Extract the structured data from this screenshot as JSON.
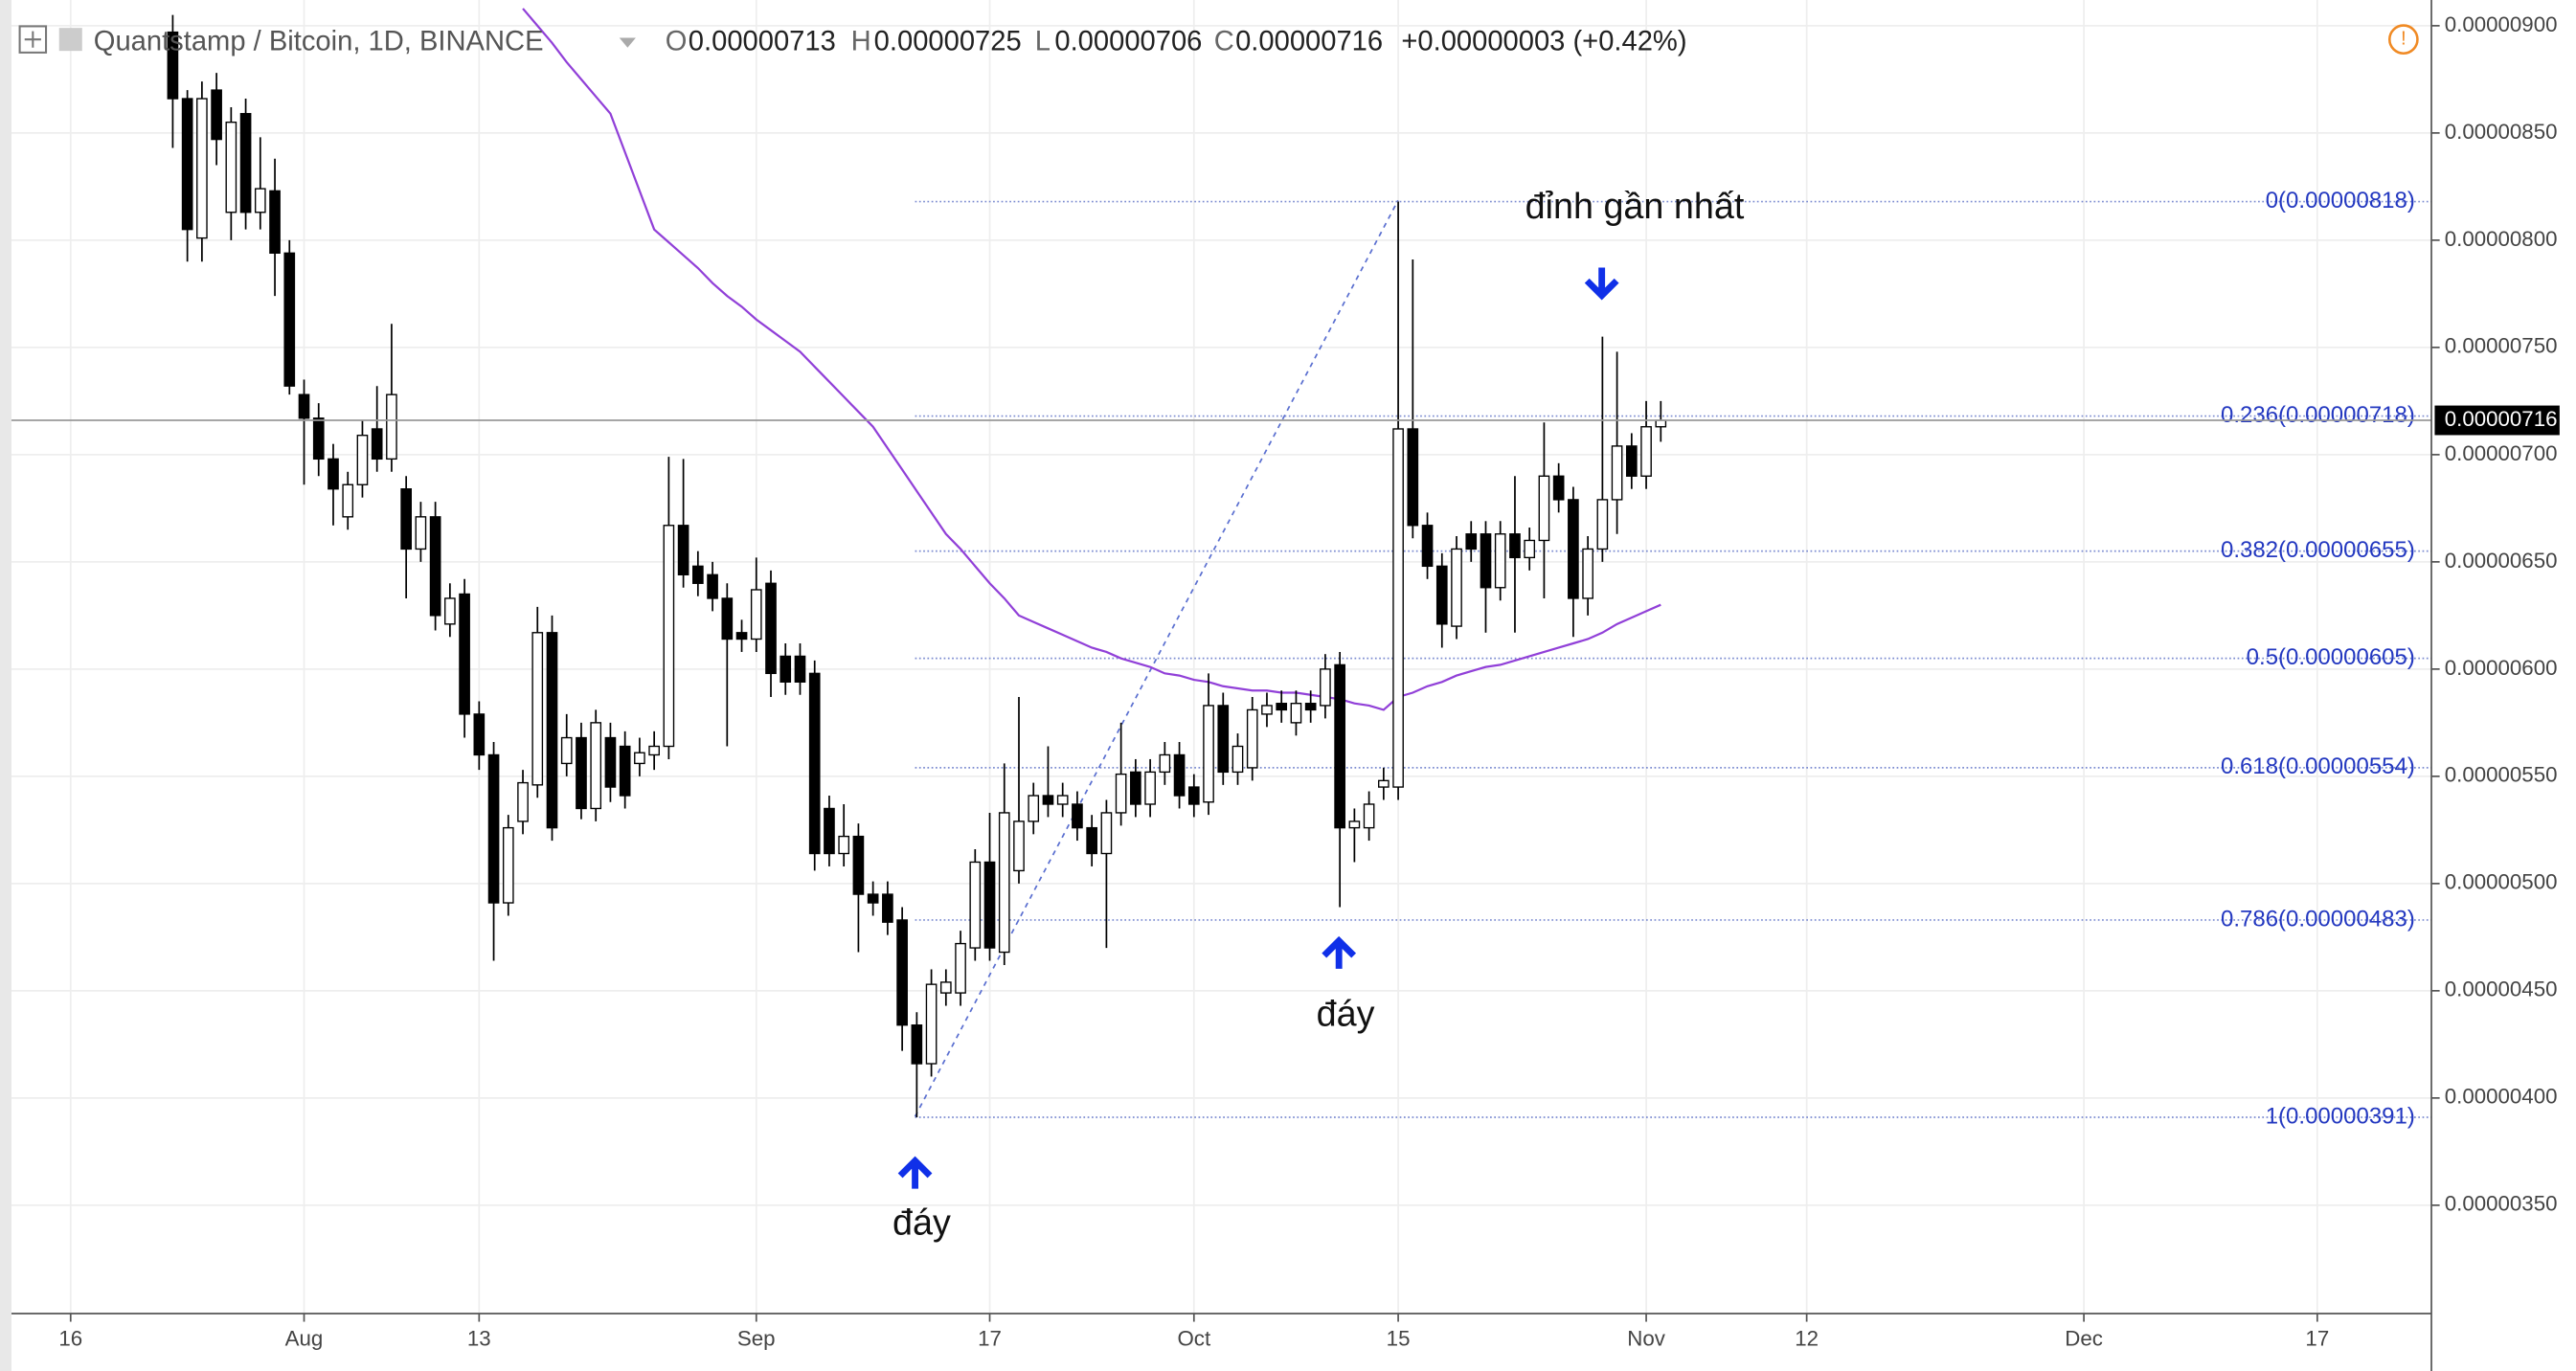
{
  "chart_data": {
    "type": "candlestick",
    "title": "Quantstamp / Bitcoin, 1D, BINANCE",
    "ohlc_legend": [
      {
        "label": "O",
        "value": "0.00000713"
      },
      {
        "label": "H",
        "value": "0.00000725"
      },
      {
        "label": "L",
        "value": "0.00000706"
      },
      {
        "label": "C",
        "value": "0.00000716"
      }
    ],
    "change": "+0.00000003 (+0.42%)",
    "categories": [
      "16",
      null,
      null,
      null,
      null,
      null,
      null,
      null,
      null,
      null,
      null,
      null,
      null,
      null,
      null,
      null,
      "Aug",
      null,
      null,
      null,
      null,
      null,
      null,
      null,
      null,
      null,
      null,
      null,
      "13",
      null,
      null,
      null,
      null,
      null,
      null,
      null,
      null,
      null,
      null,
      null,
      null,
      null,
      null,
      null,
      null,
      null,
      null,
      "Sep",
      null,
      null,
      null,
      null,
      null,
      null,
      null,
      null,
      null,
      null,
      null,
      null,
      null,
      null,
      null,
      "17",
      null,
      null,
      null,
      null,
      null,
      null,
      null,
      null,
      null,
      null,
      null,
      null,
      null,
      "Oct",
      null,
      null,
      null,
      null,
      null,
      null,
      null,
      null,
      null,
      null,
      null,
      null,
      null,
      "15",
      null,
      null,
      null,
      null,
      null,
      null,
      null,
      null,
      null,
      null,
      null,
      null,
      null,
      null,
      null,
      null,
      "Nov",
      null,
      null,
      null,
      null,
      null,
      null,
      null,
      null,
      null,
      null,
      "12",
      null,
      null,
      null,
      null,
      null,
      null,
      null,
      null,
      null,
      null,
      null,
      null,
      null,
      null,
      null,
      null,
      null,
      null,
      "Dec",
      null,
      null,
      null,
      null,
      null,
      null,
      null,
      null,
      null,
      null,
      null,
      null,
      null,
      null,
      null,
      "17",
      null,
      null,
      null,
      null,
      null,
      null,
      null
    ],
    "open": [
      null,
      null,
      null,
      null,
      null,
      null,
      null,
      8.97e-06,
      8.66e-06,
      8.01e-06,
      8.7e-06,
      8.13e-06,
      8.59e-06,
      8.13e-06,
      8.23e-06,
      7.94e-06,
      7.28e-06,
      7.17e-06,
      6.98e-06,
      6.71e-06,
      6.86e-06,
      7.12e-06,
      6.98e-06,
      6.84e-06,
      6.56e-06,
      6.71e-06,
      6.21e-06,
      6.35e-06,
      5.79e-06,
      5.6e-06,
      4.91e-06,
      5.29e-06,
      5.46e-06,
      6.17e-06,
      5.56e-06,
      5.68e-06,
      5.35e-06,
      5.68e-06,
      5.64e-06,
      5.56e-06,
      5.6e-06,
      5.64e-06,
      6.67e-06,
      6.48e-06,
      6.44e-06,
      6.33e-06,
      6.17e-06,
      6.14e-06,
      6.4e-06,
      6.06e-06,
      6.06e-06,
      5.98e-06,
      5.35e-06,
      5.14e-06,
      5.22e-06,
      4.95e-06,
      4.95e-06,
      4.83e-06,
      4.34e-06,
      4.16e-06,
      4.49e-06,
      4.49e-06,
      4.7e-06,
      5.1e-06,
      4.68e-06,
      5.06e-06,
      5.29e-06,
      5.41e-06,
      5.37e-06,
      5.37e-06,
      5.26e-06,
      5.14e-06,
      5.33e-06,
      5.52e-06,
      5.37e-06,
      5.52e-06,
      5.6e-06,
      5.45e-06,
      5.38e-06,
      5.83e-06,
      5.52e-06,
      5.54e-06,
      5.79e-06,
      5.84e-06,
      5.75e-06,
      5.84e-06,
      5.83e-06,
      6.02e-06,
      5.26e-06,
      5.26e-06,
      5.45e-06,
      5.45e-06,
      7.12e-06,
      6.67e-06,
      6.48e-06,
      6.2e-06,
      6.63e-06,
      6.63e-06,
      6.38e-06,
      6.63e-06,
      6.52e-06,
      6.6e-06,
      6.9e-06,
      6.79e-06,
      6.33e-06,
      6.56e-06,
      6.79e-06,
      7.04e-06,
      6.9e-06,
      7.13e-06,
      null,
      null,
      null,
      null,
      null,
      null,
      null,
      null,
      null,
      null,
      null,
      null,
      null,
      null,
      null,
      null,
      null,
      null,
      null,
      null,
      null,
      null,
      null,
      null,
      null,
      null,
      null,
      null,
      null,
      null,
      null,
      null,
      null,
      null,
      null,
      null,
      null,
      null,
      null,
      null,
      null,
      null,
      null,
      null,
      null,
      null,
      null,
      null,
      null,
      null,
      null,
      null
    ],
    "high": [
      null,
      null,
      null,
      null,
      null,
      null,
      null,
      9.05e-06,
      8.7e-06,
      8.74e-06,
      8.78e-06,
      8.62e-06,
      8.66e-06,
      8.48e-06,
      8.38e-06,
      8e-06,
      7.35e-06,
      7.24e-06,
      7.05e-06,
      6.92e-06,
      7.16e-06,
      7.32e-06,
      7.61e-06,
      6.9e-06,
      6.78e-06,
      6.78e-06,
      6.4e-06,
      6.42e-06,
      5.85e-06,
      5.66e-06,
      5.32e-06,
      5.53e-06,
      6.29e-06,
      6.25e-06,
      5.79e-06,
      5.75e-06,
      5.81e-06,
      5.75e-06,
      5.71e-06,
      5.68e-06,
      5.71e-06,
      6.99e-06,
      6.98e-06,
      6.55e-06,
      6.5e-06,
      6.4e-06,
      6.23e-06,
      6.52e-06,
      6.46e-06,
      6.12e-06,
      6.12e-06,
      6.04e-06,
      5.41e-06,
      5.37e-06,
      5.28e-06,
      5.01e-06,
      5.01e-06,
      4.89e-06,
      4.4e-06,
      4.6e-06,
      4.6e-06,
      4.78e-06,
      5.16e-06,
      5.33e-06,
      5.56e-06,
      5.87e-06,
      5.47e-06,
      5.64e-06,
      5.47e-06,
      5.43e-06,
      5.32e-06,
      5.39e-06,
      5.75e-06,
      5.58e-06,
      5.58e-06,
      5.66e-06,
      5.66e-06,
      5.51e-06,
      5.98e-06,
      5.89e-06,
      5.7e-06,
      5.87e-06,
      5.89e-06,
      5.9e-06,
      5.9e-06,
      5.9e-06,
      6.07e-06,
      6.08e-06,
      5.35e-06,
      5.43e-06,
      5.54e-06,
      8.18e-06,
      7.91e-06,
      6.73e-06,
      6.54e-06,
      6.62e-06,
      6.69e-06,
      6.69e-06,
      6.69e-06,
      6.9e-06,
      6.66e-06,
      7.15e-06,
      6.96e-06,
      6.85e-06,
      6.62e-06,
      7.55e-06,
      7.48e-06,
      7.1e-06,
      7.25e-06,
      7.25e-06,
      null,
      null,
      null,
      null,
      null,
      null,
      null,
      null,
      null,
      null,
      null,
      null,
      null,
      null,
      null,
      null,
      null,
      null,
      null,
      null,
      null,
      null,
      null,
      null,
      null,
      null,
      null,
      null,
      null,
      null,
      null,
      null,
      null,
      null,
      null,
      null,
      null,
      null,
      null,
      null,
      null,
      null,
      null,
      null,
      null,
      null,
      null,
      null,
      null,
      null,
      null,
      null
    ],
    "low": [
      null,
      null,
      null,
      null,
      null,
      null,
      null,
      8.43e-06,
      7.9e-06,
      7.9e-06,
      8.35e-06,
      8e-06,
      8.05e-06,
      8.05e-06,
      7.74e-06,
      7.28e-06,
      6.86e-06,
      6.9e-06,
      6.67e-06,
      6.65e-06,
      6.8e-06,
      6.92e-06,
      6.92e-06,
      6.33e-06,
      6.5e-06,
      6.18e-06,
      6.15e-06,
      5.68e-06,
      5.53e-06,
      4.64e-06,
      4.85e-06,
      5.23e-06,
      5.4e-06,
      5.2e-06,
      5.5e-06,
      5.3e-06,
      5.29e-06,
      5.38e-06,
      5.35e-06,
      5.5e-06,
      5.53e-06,
      5.58e-06,
      6.38e-06,
      6.34e-06,
      6.27e-06,
      5.64e-06,
      6.08e-06,
      6.08e-06,
      5.87e-06,
      5.88e-06,
      5.88e-06,
      5.06e-06,
      5.08e-06,
      5.08e-06,
      4.68e-06,
      4.85e-06,
      4.76e-06,
      4.22e-06,
      3.91e-06,
      4.1e-06,
      4.43e-06,
      4.43e-06,
      4.64e-06,
      4.64e-06,
      4.62e-06,
      5e-06,
      5.23e-06,
      5.31e-06,
      5.31e-06,
      5.2e-06,
      5.08e-06,
      4.7e-06,
      5.27e-06,
      5.31e-06,
      5.31e-06,
      5.46e-06,
      5.35e-06,
      5.31e-06,
      5.32e-06,
      5.46e-06,
      5.46e-06,
      5.48e-06,
      5.73e-06,
      5.75e-06,
      5.69e-06,
      5.75e-06,
      5.77e-06,
      4.89e-06,
      5.1e-06,
      5.2e-06,
      5.39e-06,
      5.39e-06,
      6.61e-06,
      6.42e-06,
      6.1e-06,
      6.14e-06,
      6.5e-06,
      6.17e-06,
      6.32e-06,
      6.17e-06,
      6.46e-06,
      6.33e-06,
      6.73e-06,
      6.15e-06,
      6.25e-06,
      6.5e-06,
      6.63e-06,
      6.84e-06,
      6.84e-06,
      7.06e-06,
      null,
      null,
      null,
      null,
      null,
      null,
      null,
      null,
      null,
      null,
      null,
      null,
      null,
      null,
      null,
      null,
      null,
      null,
      null,
      null,
      null,
      null,
      null,
      null,
      null,
      null,
      null,
      null,
      null,
      null,
      null,
      null,
      null,
      null,
      null,
      null,
      null,
      null,
      null,
      null,
      null,
      null,
      null,
      null,
      null,
      null,
      null,
      null,
      null,
      null,
      null,
      null
    ],
    "close": [
      null,
      null,
      null,
      null,
      null,
      null,
      null,
      8.66e-06,
      8.05e-06,
      8.66e-06,
      8.47e-06,
      8.55e-06,
      8.13e-06,
      8.24e-06,
      7.94e-06,
      7.32e-06,
      7.17e-06,
      6.98e-06,
      6.84e-06,
      6.86e-06,
      7.09e-06,
      6.98e-06,
      7.28e-06,
      6.56e-06,
      6.71e-06,
      6.25e-06,
      6.33e-06,
      5.79e-06,
      5.6e-06,
      4.91e-06,
      5.26e-06,
      5.47e-06,
      6.17e-06,
      5.26e-06,
      5.68e-06,
      5.35e-06,
      5.75e-06,
      5.45e-06,
      5.41e-06,
      5.61e-06,
      5.64e-06,
      6.67e-06,
      6.44e-06,
      6.4e-06,
      6.33e-06,
      6.14e-06,
      6.14e-06,
      6.37e-06,
      5.98e-06,
      5.94e-06,
      5.94e-06,
      5.14e-06,
      5.14e-06,
      5.22e-06,
      4.95e-06,
      4.91e-06,
      4.82e-06,
      4.34e-06,
      4.16e-06,
      4.53e-06,
      4.54e-06,
      4.72e-06,
      5.1e-06,
      4.7e-06,
      5.33e-06,
      5.29e-06,
      5.41e-06,
      5.37e-06,
      5.41e-06,
      5.26e-06,
      5.14e-06,
      5.33e-06,
      5.51e-06,
      5.37e-06,
      5.52e-06,
      5.6e-06,
      5.41e-06,
      5.37e-06,
      5.83e-06,
      5.52e-06,
      5.64e-06,
      5.81e-06,
      5.83e-06,
      5.81e-06,
      5.84e-06,
      5.81e-06,
      6e-06,
      5.26e-06,
      5.29e-06,
      5.37e-06,
      5.48e-06,
      7.12e-06,
      6.67e-06,
      6.48e-06,
      6.21e-06,
      6.56e-06,
      6.56e-06,
      6.38e-06,
      6.63e-06,
      6.52e-06,
      6.6e-06,
      6.9e-06,
      6.79e-06,
      6.33e-06,
      6.56e-06,
      6.79e-06,
      7.04e-06,
      6.9e-06,
      7.13e-06,
      7.16e-06,
      null,
      null,
      null,
      null,
      null,
      null,
      null,
      null,
      null,
      null,
      null,
      null,
      null,
      null,
      null,
      null,
      null,
      null,
      null,
      null,
      null,
      null,
      null,
      null,
      null,
      null,
      null,
      null,
      null,
      null,
      null,
      null,
      null,
      null,
      null,
      null,
      null,
      null,
      null,
      null,
      null,
      null,
      null,
      null,
      null,
      null,
      null,
      null,
      null,
      null,
      null,
      null
    ],
    "up_color": "#ffffff",
    "down_color": "#000000",
    "candle_border": "#000000",
    "overlay": {
      "color": "#9140d8",
      "values": [
        null,
        null,
        null,
        null,
        null,
        null,
        null,
        null,
        null,
        null,
        null,
        null,
        null,
        null,
        null,
        null,
        null,
        null,
        null,
        null,
        null,
        null,
        null,
        null,
        null,
        null,
        null,
        null,
        null,
        null,
        null,
        9.08e-06,
        9e-06,
        8.92e-06,
        8.83e-06,
        8.75e-06,
        8.67e-06,
        8.59e-06,
        8.41e-06,
        8.23e-06,
        8.05e-06,
        7.99e-06,
        7.93e-06,
        7.87e-06,
        7.8e-06,
        7.74e-06,
        7.69e-06,
        7.63e-06,
        7.58e-06,
        7.53e-06,
        7.48e-06,
        7.41e-06,
        7.34e-06,
        7.27e-06,
        7.2e-06,
        7.13e-06,
        7.03e-06,
        6.93e-06,
        6.83e-06,
        6.73e-06,
        6.63e-06,
        6.56e-06,
        6.48e-06,
        6.4e-06,
        6.33e-06,
        6.25e-06,
        6.22e-06,
        6.19e-06,
        6.16e-06,
        6.13e-06,
        6.1e-06,
        6.08e-06,
        6.05e-06,
        6.03e-06,
        6.01e-06,
        5.98e-06,
        5.97e-06,
        5.95e-06,
        5.94e-06,
        5.92e-06,
        5.91e-06,
        5.9e-06,
        5.9e-06,
        5.89e-06,
        5.89e-06,
        5.88e-06,
        5.87e-06,
        5.86e-06,
        5.84e-06,
        5.83e-06,
        5.81e-06,
        5.87e-06,
        5.89e-06,
        5.92e-06,
        5.94e-06,
        5.97e-06,
        5.99e-06,
        6.01e-06,
        6.02e-06,
        6.04e-06,
        6.06e-06,
        6.08e-06,
        6.1e-06,
        6.12e-06,
        6.14e-06,
        6.17e-06,
        6.21e-06,
        6.24e-06,
        6.27e-06,
        6.3e-06,
        null,
        null,
        null,
        null,
        null,
        null,
        null,
        null,
        null,
        null,
        null,
        null,
        null,
        null,
        null,
        null,
        null,
        null,
        null,
        null,
        null,
        null,
        null,
        null,
        null,
        null,
        null,
        null,
        null,
        null,
        null,
        null,
        null,
        null,
        null,
        null,
        null,
        null,
        null,
        null,
        null,
        null,
        null,
        null,
        null,
        null,
        null,
        null,
        null,
        null,
        null,
        null
      ]
    },
    "fib_levels": [
      {
        "label": "0(0.00000818)",
        "value": 8.18e-06
      },
      {
        "label": "0.236(0.00000718)",
        "value": 7.18e-06
      },
      {
        "label": "0.382(0.00000655)",
        "value": 6.55e-06
      },
      {
        "label": "0.5(0.00000605)",
        "value": 6.05e-06
      },
      {
        "label": "0.618(0.00000554)",
        "value": 5.54e-06
      },
      {
        "label": "0.786(0.00000483)",
        "value": 4.83e-06
      },
      {
        "label": "1(0.00000391)",
        "value": 3.91e-06
      }
    ],
    "fib_color": "#7b8bd0",
    "last_price": {
      "value": 7.16e-06,
      "label": "0.00000716"
    },
    "annotations": [
      "đỉnh gần nhất",
      "đáy",
      "đáy"
    ],
    "ylim": [
      2.995e-06,
      9.12e-06
    ],
    "yticks": [
      {
        "value": 9e-06,
        "label": "0.00000900"
      },
      {
        "value": 8.5e-06,
        "label": "0.00000850"
      },
      {
        "value": 8e-06,
        "label": "0.00000800"
      },
      {
        "value": 7.5e-06,
        "label": "0.00000750"
      },
      {
        "value": 7e-06,
        "label": "0.00000700"
      },
      {
        "value": 6.5e-06,
        "label": "0.00000650"
      },
      {
        "value": 6e-06,
        "label": "0.00000600"
      },
      {
        "value": 5.5e-06,
        "label": "0.00000550"
      },
      {
        "value": 5e-06,
        "label": "0.00000500"
      },
      {
        "value": 4.5e-06,
        "label": "0.00000450"
      },
      {
        "value": 4e-06,
        "label": "0.00000400"
      },
      {
        "value": 3.5e-06,
        "label": "0.00000350"
      }
    ],
    "grid": true
  }
}
